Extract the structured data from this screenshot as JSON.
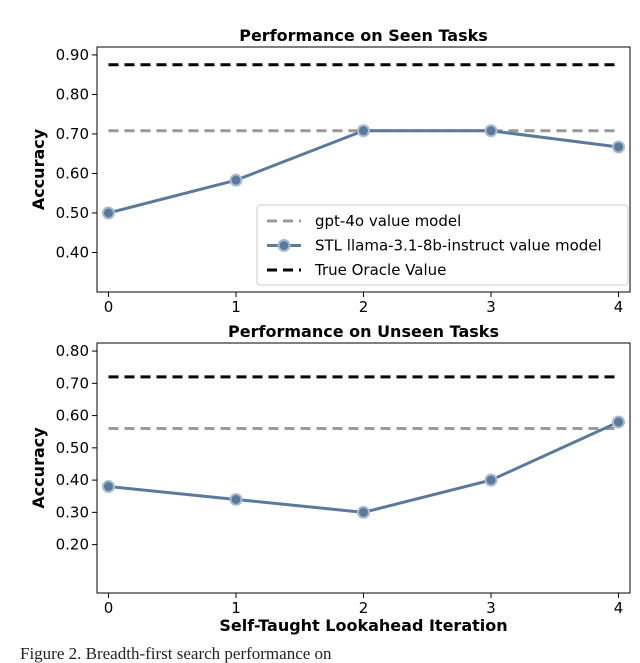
{
  "chart_data": [
    {
      "type": "line",
      "title": "Performance on Seen Tasks",
      "y_label": "Accuracy",
      "x": [
        0,
        1,
        2,
        3,
        4
      ],
      "xlim": [
        -0.09,
        4.09
      ],
      "xticks": [
        0,
        1,
        2,
        3,
        4
      ],
      "ylim": [
        0.3,
        0.92
      ],
      "yticks": [
        {
          "value": 0.4,
          "label": "0.40"
        },
        {
          "value": 0.5,
          "label": "0.50"
        },
        {
          "value": 0.6,
          "label": "0.60"
        },
        {
          "value": 0.7,
          "label": "0.70"
        },
        {
          "value": 0.8,
          "label": "0.80"
        },
        {
          "value": 0.9,
          "label": "0.90"
        }
      ],
      "legend": "lower right",
      "series": [
        {
          "name": "gpt-4o value model",
          "color": "#999999",
          "style": "dashed",
          "values": [
            0.708,
            0.708,
            0.708,
            0.708,
            0.708
          ]
        },
        {
          "name": "STL llama-3.1-8b-instruct value model",
          "color": "#5a7a9c",
          "style": "solid-marker",
          "values": [
            0.5,
            0.583,
            0.708,
            0.708,
            0.667
          ]
        },
        {
          "name": "True Oracle Value",
          "color": "#000000",
          "style": "dashed",
          "values": [
            0.875,
            0.875,
            0.875,
            0.875,
            0.875
          ]
        }
      ]
    },
    {
      "type": "line",
      "title": "Performance on Unseen Tasks",
      "y_label": "Accuracy",
      "x_label": "Self-Taught Lookahead Iteration",
      "x": [
        0,
        1,
        2,
        3,
        4
      ],
      "xlim": [
        -0.09,
        4.09
      ],
      "xticks": [
        0,
        1,
        2,
        3,
        4
      ],
      "ylim": [
        0.05,
        0.825
      ],
      "yticks": [
        {
          "value": 0.2,
          "label": "0.20"
        },
        {
          "value": 0.3,
          "label": "0.30"
        },
        {
          "value": 0.4,
          "label": "0.40"
        },
        {
          "value": 0.5,
          "label": "0.50"
        },
        {
          "value": 0.6,
          "label": "0.60"
        },
        {
          "value": 0.7,
          "label": "0.70"
        },
        {
          "value": 0.8,
          "label": "0.80"
        }
      ],
      "series": [
        {
          "name": "gpt-4o value model",
          "color": "#999999",
          "style": "dashed",
          "values": [
            0.56,
            0.56,
            0.56,
            0.56,
            0.56
          ]
        },
        {
          "name": "STL llama-3.1-8b-instruct value model",
          "color": "#5a7a9c",
          "style": "solid-marker",
          "values": [
            0.38,
            0.34,
            0.3,
            0.4,
            0.58
          ]
        },
        {
          "name": "True Oracle Value",
          "color": "#000000",
          "style": "dashed",
          "values": [
            0.72,
            0.72,
            0.72,
            0.72,
            0.72
          ]
        }
      ]
    }
  ],
  "caption": "Figure 2. Breadth-first search performance on"
}
